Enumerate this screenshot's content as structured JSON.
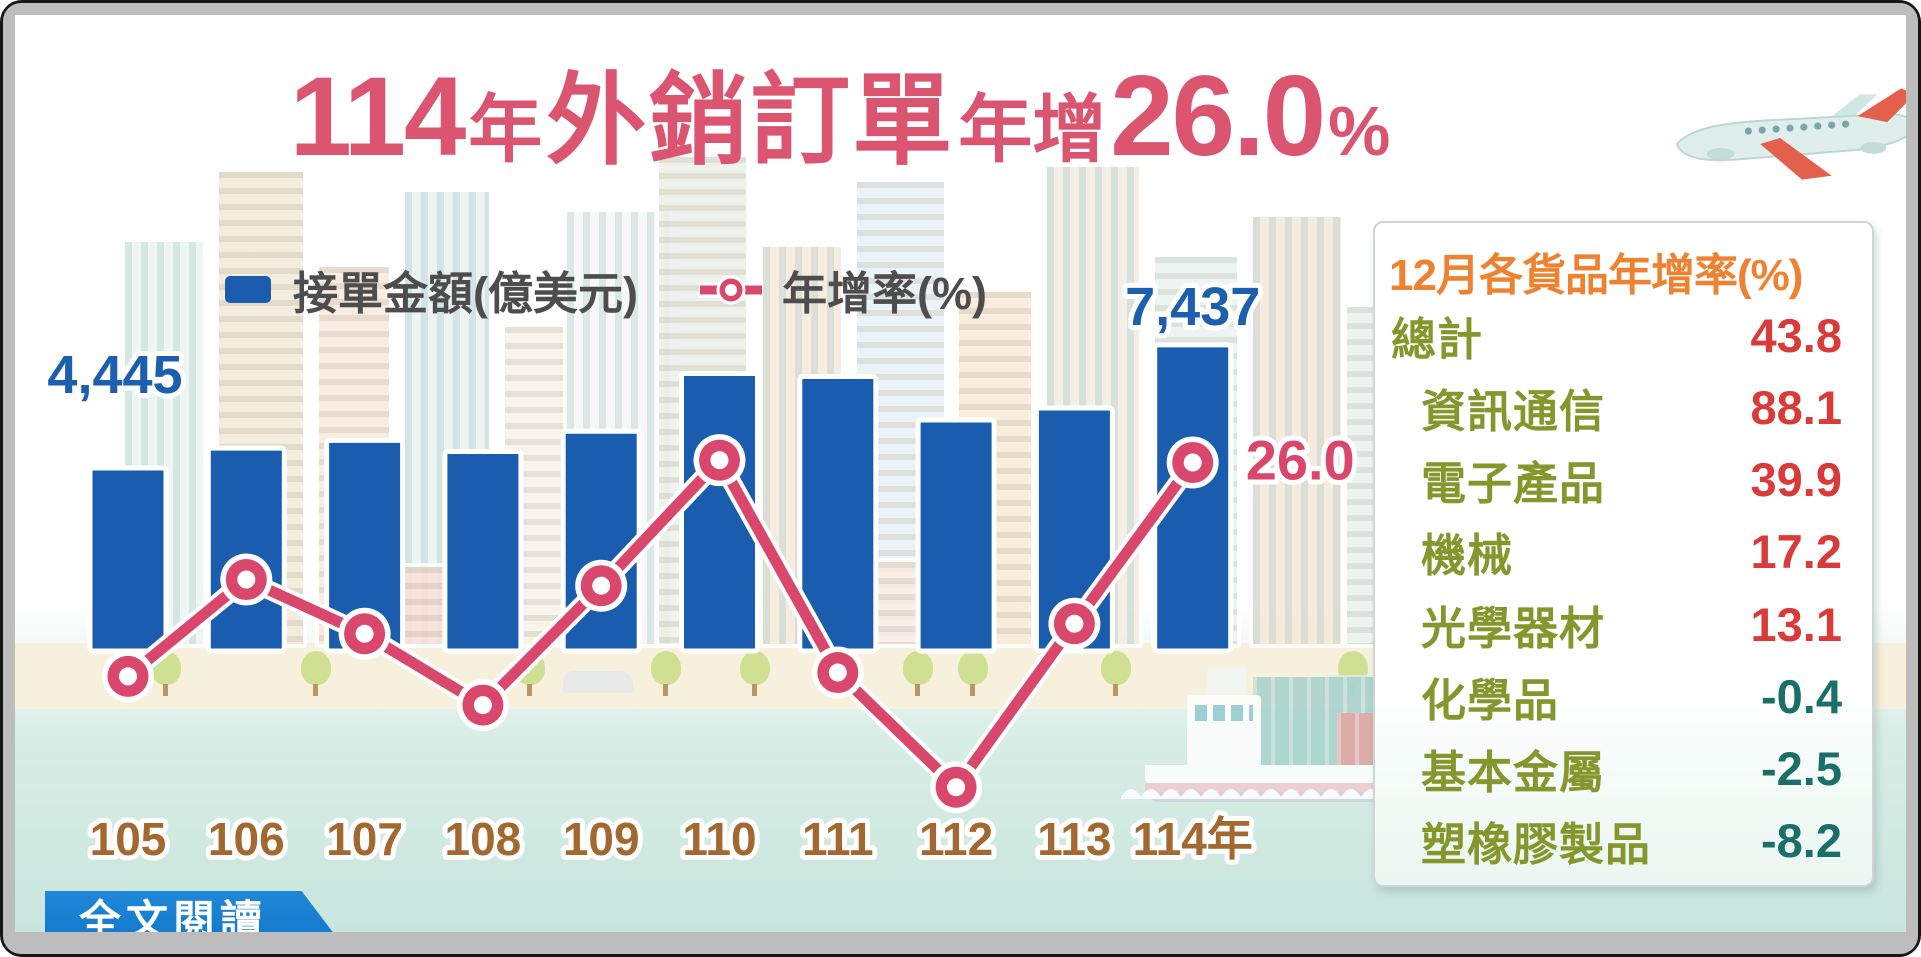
{
  "title": {
    "num": "114",
    "unit": "年",
    "main": "外銷訂單",
    "mid": "年增",
    "value": "26.0",
    "pct": "%"
  },
  "legend": {
    "bar_label": "接單金額(億美元)",
    "line_label": "年增率(%)"
  },
  "chart_data": {
    "type": "bar+line",
    "categories": [
      "105",
      "106",
      "107",
      "108",
      "109",
      "110",
      "111",
      "112",
      "113",
      "114年"
    ],
    "series": [
      {
        "name": "接單金額(億美元)",
        "type": "bar",
        "values": [
          4445,
          4928,
          5115,
          4845,
          5337,
          6741,
          6667,
          5610,
          5902,
          7437
        ]
      },
      {
        "name": "年增率(%)",
        "type": "line",
        "values": [
          -1.6,
          10.9,
          3.9,
          -5.3,
          10.1,
          26.3,
          -1.1,
          -15.9,
          5.2,
          26.0
        ]
      }
    ],
    "point_labels": [
      {
        "series": "bar",
        "category": "105",
        "text": "4,445"
      },
      {
        "series": "bar",
        "category": "114年",
        "text": "7,437"
      },
      {
        "series": "line",
        "category": "114年",
        "text": "26.0"
      }
    ],
    "legend_position": "top",
    "grid": false,
    "bar_axis_estimated_range": [
      0,
      7800
    ],
    "line_axis_estimated_range": [
      -20,
      30
    ]
  },
  "panel": {
    "header": "12月各貨品年增率(%)",
    "rows": [
      {
        "label": "總計",
        "value": "43.8",
        "indent": false
      },
      {
        "label": "資訊通信",
        "value": "88.1",
        "indent": true
      },
      {
        "label": "電子產品",
        "value": "39.9",
        "indent": true
      },
      {
        "label": "機械",
        "value": "17.2",
        "indent": true
      },
      {
        "label": "光學器材",
        "value": "13.1",
        "indent": true
      },
      {
        "label": "化學品",
        "value": "-0.4",
        "indent": true
      },
      {
        "label": "基本金屬",
        "value": "-2.5",
        "indent": true
      },
      {
        "label": "塑橡膠製品",
        "value": "-8.2",
        "indent": true
      }
    ]
  },
  "footer": {
    "read_more_label": "全文閱讀"
  },
  "colors": {
    "bar_blue": "#1a5cae",
    "line_pink": "#d9486c",
    "title_pink": "#db5470",
    "value_blue": "#1c5fae",
    "axis_brown": "#a2682f",
    "header_orange": "#ee8230",
    "label_olive": "#85972c",
    "positive_red": "#d93b3b",
    "negative_teal": "#1a6f68",
    "button_blue": "#0f74c6"
  }
}
